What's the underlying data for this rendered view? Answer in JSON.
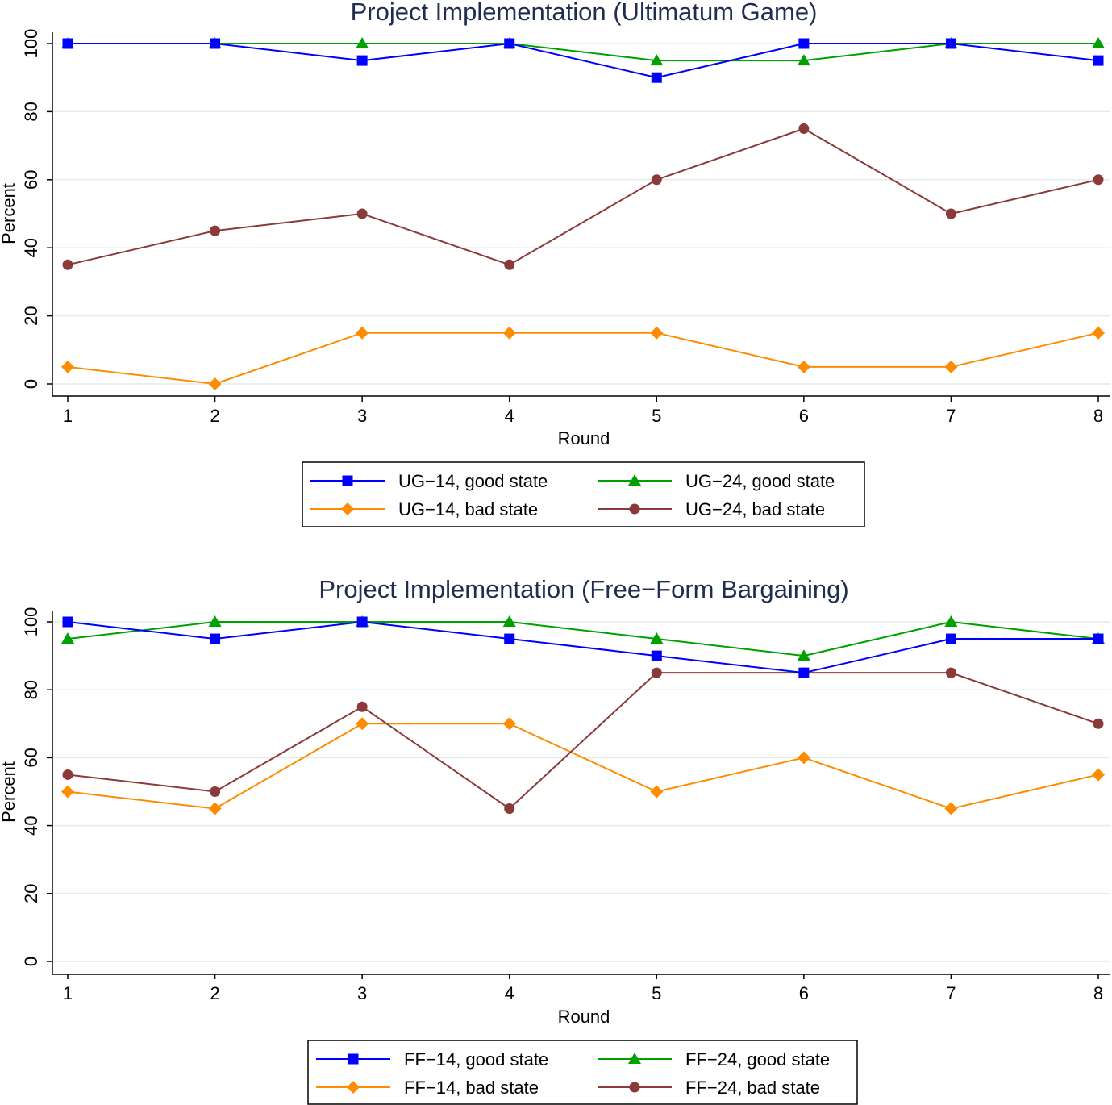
{
  "colors": {
    "good_14": "#0000ff",
    "good_24": "#00a000",
    "bad_14": "#ff8c00",
    "bad_24": "#8b3a3a",
    "title": "#1f2d4e",
    "grid": "#e4ebea"
  },
  "chart_data": [
    {
      "type": "line",
      "title": "Project Implementation  (Ultimatum Game)",
      "xlabel": "Round",
      "ylabel": "Percent",
      "x": [
        1,
        2,
        3,
        4,
        5,
        6,
        7,
        8
      ],
      "xticks": [
        "1",
        "2",
        "3",
        "4",
        "5",
        "6",
        "7",
        "8"
      ],
      "yticks": [
        "0",
        "20",
        "40",
        "60",
        "80",
        "100"
      ],
      "ylim": [
        0,
        100
      ],
      "grid": true,
      "legend_position": "bottom",
      "series": [
        {
          "name": "UG−14, good state",
          "marker": "square",
          "color": "#0000ff",
          "values": [
            100,
            100,
            95,
            100,
            90,
            100,
            100,
            95
          ]
        },
        {
          "name": "UG−24, good state",
          "marker": "triangle",
          "color": "#00a000",
          "values": [
            100,
            100,
            100,
            100,
            95,
            95,
            100,
            100
          ]
        },
        {
          "name": "UG−14, bad state",
          "marker": "diamond",
          "color": "#ff8c00",
          "values": [
            5,
            0,
            15,
            15,
            15,
            5,
            5,
            15
          ]
        },
        {
          "name": "UG−24, bad state",
          "marker": "circle",
          "color": "#8b3a3a",
          "values": [
            35,
            45,
            50,
            35,
            60,
            75,
            50,
            60
          ]
        }
      ]
    },
    {
      "type": "line",
      "title": "Project Implementation  (Free−Form Bargaining)",
      "xlabel": "Round",
      "ylabel": "Percent",
      "x": [
        1,
        2,
        3,
        4,
        5,
        6,
        7,
        8
      ],
      "xticks": [
        "1",
        "2",
        "3",
        "4",
        "5",
        "6",
        "7",
        "8"
      ],
      "yticks": [
        "0",
        "20",
        "40",
        "60",
        "80",
        "100"
      ],
      "ylim": [
        0,
        100
      ],
      "grid": true,
      "legend_position": "bottom",
      "series": [
        {
          "name": "FF−14, good state",
          "marker": "square",
          "color": "#0000ff",
          "values": [
            100,
            95,
            100,
            95,
            90,
            85,
            95,
            95
          ]
        },
        {
          "name": "FF−24, good state",
          "marker": "triangle",
          "color": "#00a000",
          "values": [
            95,
            100,
            100,
            100,
            95,
            90,
            100,
            95
          ]
        },
        {
          "name": "FF−14, bad state",
          "marker": "diamond",
          "color": "#ff8c00",
          "values": [
            50,
            45,
            70,
            70,
            50,
            60,
            45,
            55
          ]
        },
        {
          "name": "FF−24, bad state",
          "marker": "circle",
          "color": "#8b3a3a",
          "values": [
            55,
            50,
            75,
            45,
            85,
            85,
            85,
            70
          ]
        }
      ]
    }
  ]
}
